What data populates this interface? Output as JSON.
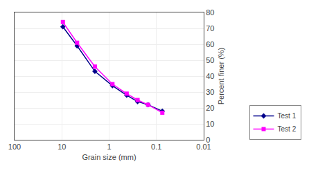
{
  "chart_data": {
    "type": "line",
    "x": [
      9.5,
      4.75,
      2.0,
      0.85,
      0.425,
      0.25,
      0.15,
      0.075
    ],
    "series": [
      {
        "name": "Test 1",
        "color": "#00008B",
        "marker": "diamond",
        "values": [
          71,
          59,
          43,
          34,
          28,
          24,
          22,
          18
        ]
      },
      {
        "name": "Test 2",
        "color": "#FF00FF",
        "marker": "square",
        "values": [
          74,
          61,
          46,
          35,
          29,
          25,
          22,
          17
        ]
      }
    ],
    "xlabel": "Grain size (mm)",
    "ylabel": "Percent finer (%)",
    "log": "x",
    "xlim": [
      100,
      0.01
    ],
    "ylim": [
      0,
      80
    ],
    "xticks": [
      100,
      10,
      1,
      0.1,
      0.01
    ],
    "yticks": [
      0,
      10,
      20,
      30,
      40,
      50,
      60,
      70,
      80
    ],
    "grid": true,
    "legend": "lower right"
  }
}
